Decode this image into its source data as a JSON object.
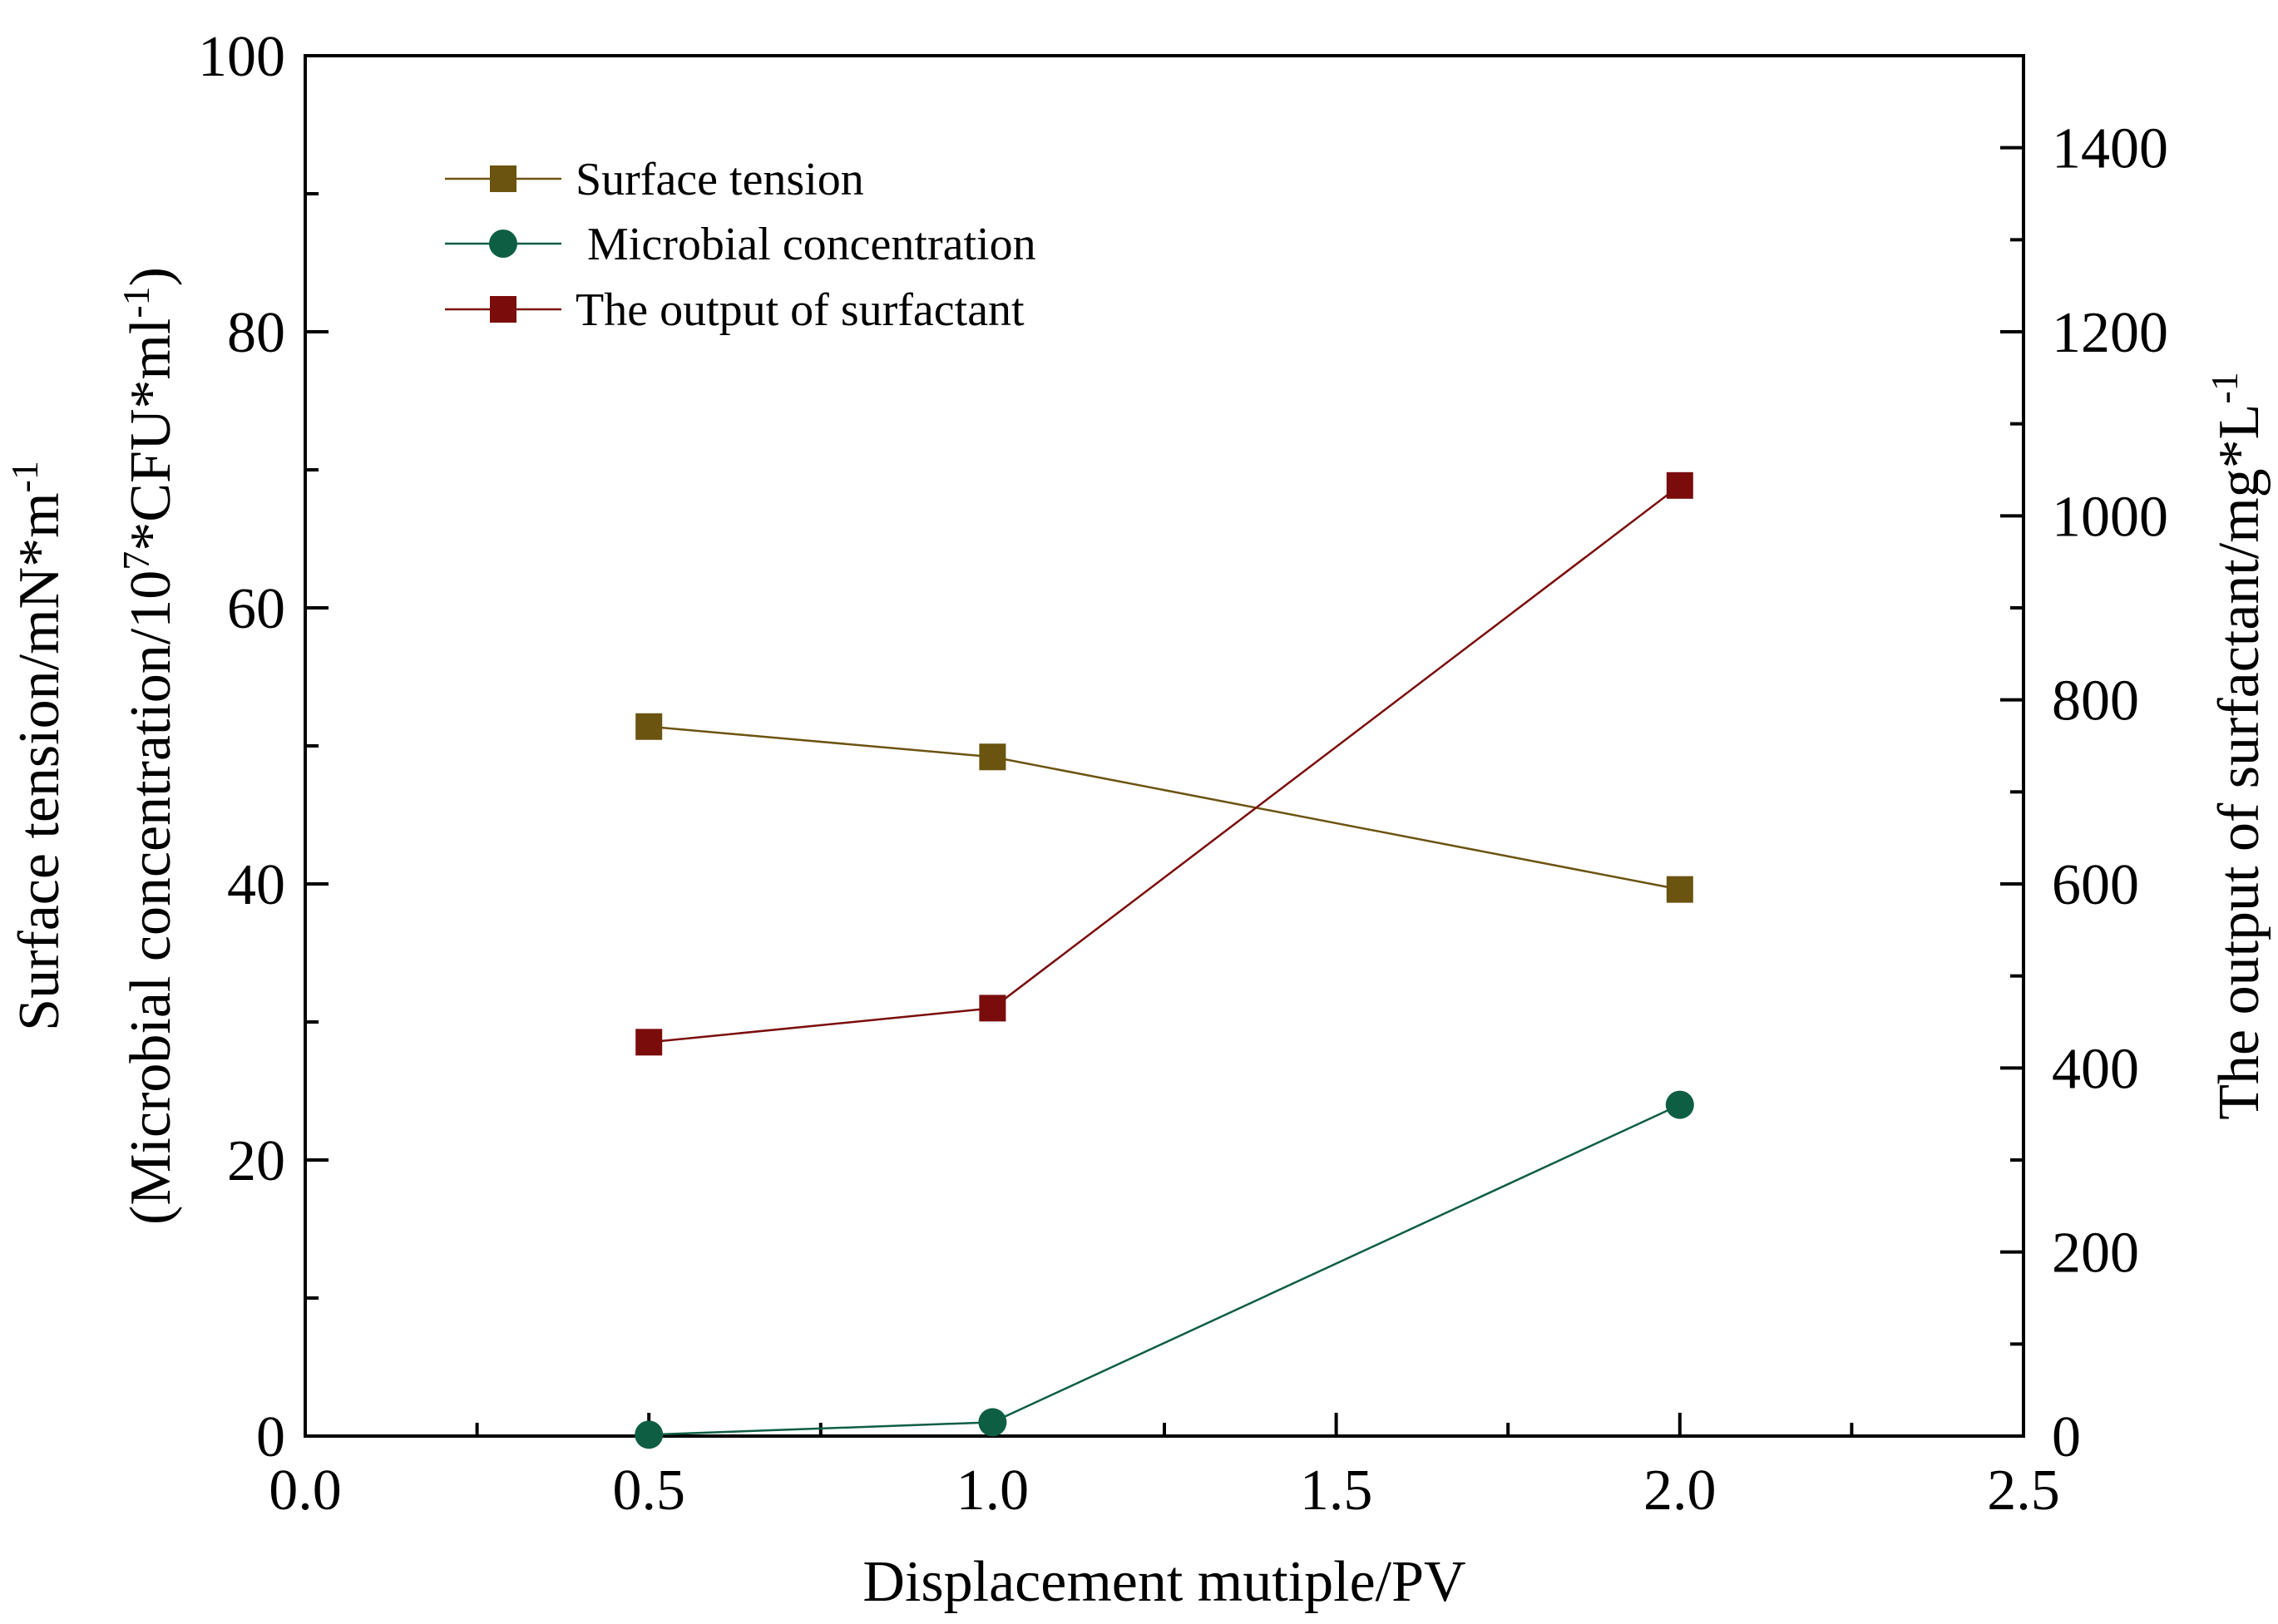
{
  "chart_data": {
    "type": "line",
    "xlabel": "Displacement mutiple/PV",
    "ylabel_left_line1": "Surface tension/mN*m",
    "ylabel_left_line1_sup": "-1",
    "ylabel_left_line2_pre": "(Microbial concentration/10",
    "ylabel_left_line2_sup1": "7",
    "ylabel_left_line2_mid": "*CFU*ml",
    "ylabel_left_line2_sup2": "-1",
    "ylabel_left_line2_post": ")",
    "ylabel_right": "The output of surfactant/mg*L",
    "ylabel_right_sup": "-1",
    "xlim": [
      0.0,
      2.5
    ],
    "ylim_left": [
      0,
      100
    ],
    "ylim_right": [
      0,
      1500
    ],
    "x_ticks": [
      "0.0",
      "0.5",
      "1.0",
      "1.5",
      "2.0",
      "2.5"
    ],
    "y_left_ticks": [
      "0",
      "20",
      "40",
      "60",
      "80",
      "100"
    ],
    "y_right_ticks": [
      "0",
      "200",
      "400",
      "600",
      "800",
      "1000",
      "1200",
      "1400"
    ],
    "legend_position": "top-left",
    "series": [
      {
        "name": "Surface tension",
        "axis": "left",
        "marker": "square",
        "color": "#6b5310",
        "x": [
          0.5,
          1.0,
          2.0
        ],
        "y": [
          51.4,
          49.2,
          39.6
        ]
      },
      {
        "name": " Microbial concentration",
        "axis": "left",
        "marker": "circle",
        "color": "#0e5e44",
        "x": [
          0.5,
          1.0,
          2.0
        ],
        "y": [
          0.1,
          1.0,
          24.0
        ]
      },
      {
        "name": "The output of surfactant",
        "axis": "right",
        "marker": "square",
        "color": "#7a0c0c",
        "x": [
          0.5,
          1.0,
          2.0
        ],
        "y": [
          428,
          465,
          1033
        ]
      }
    ]
  }
}
